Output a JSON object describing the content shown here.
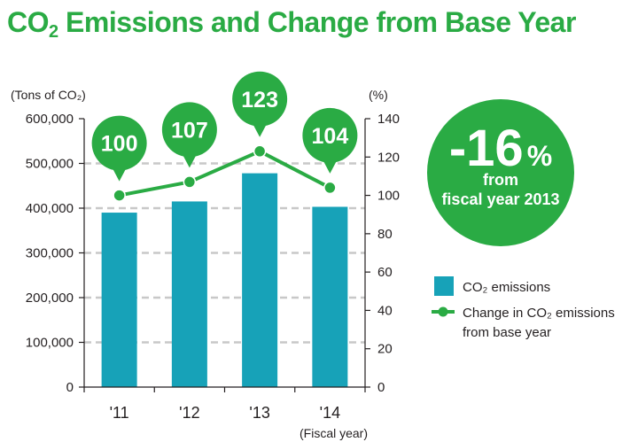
{
  "title": {
    "prefix": "CO",
    "sub": "2",
    "rest": " Emissions and Change from Base Year"
  },
  "badge": {
    "value": "-16",
    "unit": "%",
    "line1": "from",
    "line2": "fiscal year 2013"
  },
  "legend": {
    "bar_label": "CO₂ emissions",
    "line_label_1": "Change in CO₂ emissions",
    "line_label_2": "from base year"
  },
  "colors": {
    "bar": "#17a2b8",
    "line": "#2aab44",
    "title": "#2aab44",
    "grid": "#c8c8c8"
  },
  "chart_data": {
    "type": "bar",
    "title": "CO2 Emissions and Change from Base Year",
    "categories": [
      "'11",
      "'12",
      "'13",
      "'14"
    ],
    "xlabel": "(Fiscal year)",
    "ylabel_left": "(Tons of CO₂)",
    "ylabel_right": "(%)",
    "ylim_left": [
      0,
      600000
    ],
    "yticks_left": [
      "0",
      "100,000",
      "200,000",
      "300,000",
      "400,000",
      "500,000",
      "600,000"
    ],
    "ylim_right": [
      0,
      140
    ],
    "yticks_right": [
      "0",
      "20",
      "40",
      "60",
      "80",
      "100",
      "120",
      "140"
    ],
    "series": [
      {
        "name": "CO₂ emissions",
        "type": "bar",
        "axis": "left",
        "values": [
          390000,
          415000,
          478000,
          403000
        ]
      },
      {
        "name": "Change in CO₂ emissions from base year",
        "type": "line",
        "axis": "right",
        "values": [
          100,
          107,
          123,
          104
        ]
      }
    ],
    "grid": true,
    "legend_position": "right"
  }
}
